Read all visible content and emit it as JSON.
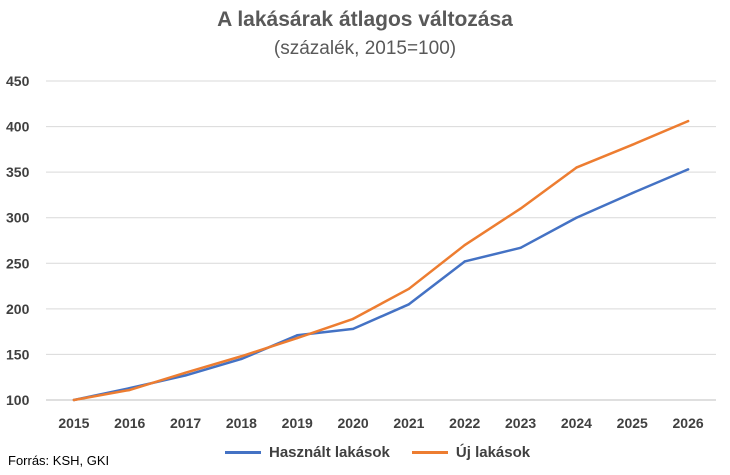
{
  "chart_data": {
    "type": "line",
    "title": "A lakásárak átlagos változása",
    "subtitle": "(százalék, 2015=100)",
    "categories": [
      "2015",
      "2016",
      "2017",
      "2018",
      "2019",
      "2020",
      "2021",
      "2022",
      "2023",
      "2024",
      "2025",
      "2026"
    ],
    "ylim": [
      100,
      450
    ],
    "yticks": [
      "100",
      "150",
      "200",
      "250",
      "300",
      "350",
      "400",
      "450"
    ],
    "grid": true,
    "legend_position": "bottom",
    "series": [
      {
        "name": "Használt lakások",
        "color": "#4472C4",
        "values": [
          100,
          113,
          127,
          145,
          171,
          178,
          205,
          252,
          267,
          300,
          327,
          353
        ]
      },
      {
        "name": "Új lakások",
        "color": "#ED7D31",
        "values": [
          100,
          111,
          130,
          148,
          168,
          189,
          222,
          270,
          310,
          355,
          380,
          406
        ]
      }
    ]
  },
  "source": "Forrás: KSH, GKI"
}
